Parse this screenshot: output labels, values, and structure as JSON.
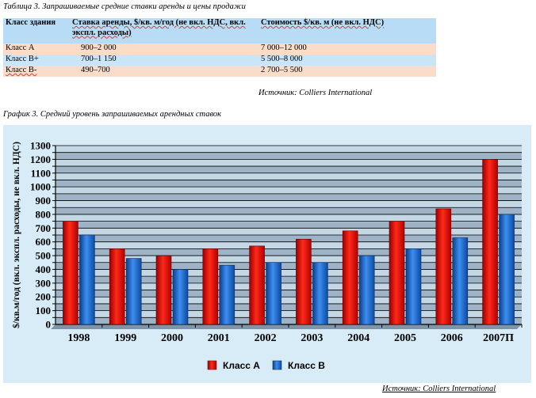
{
  "table": {
    "caption": "Таблица 3. Запрашиваемые средние ставки аренды и цены продажи",
    "headers": [
      "Класс здания",
      "Ставка аренды, $/кв. м/год (не вкл. НДС, вкл. экспл. расходы)",
      "Стоимость $/кв. м (не вкл. НДС)"
    ],
    "rows": [
      [
        "Класс А",
        "900–2 000",
        "7 000–12 000"
      ],
      [
        "Класс В+",
        "700–1 150",
        "5 500–8 000"
      ],
      [
        "Класс В-",
        "490–700",
        "2 700–5 500"
      ]
    ],
    "source": "Источник: Colliers International"
  },
  "chart_caption": "График 3. Средний уровень запрашиваемых арендных ставок",
  "chart_source": "Источник: Colliers International",
  "chart_data": {
    "type": "bar",
    "categories": [
      "1998",
      "1999",
      "2000",
      "2001",
      "2002",
      "2003",
      "2004",
      "2005",
      "2006",
      "2007П"
    ],
    "series": [
      {
        "name": "Класс А",
        "values": [
          750,
          550,
          500,
          550,
          570,
          620,
          680,
          750,
          840,
          1200
        ],
        "color": "#e01010"
      },
      {
        "name": "Класс В",
        "values": [
          650,
          480,
          400,
          430,
          450,
          450,
          500,
          550,
          630,
          800
        ],
        "color": "#1f6fd0"
      }
    ],
    "ylabel": "$/кв.м/год (вкл. экспл. расходы, не вкл. НДС)",
    "ylim": [
      0,
      1300
    ],
    "yticks": [
      0,
      50,
      100,
      150,
      200,
      250,
      300,
      350,
      400,
      450,
      500,
      550,
      600,
      650,
      700,
      750,
      800,
      850,
      900,
      950,
      1000,
      1050,
      1100,
      1150,
      1200,
      1250,
      1300
    ],
    "grid": true,
    "legend": "bottom-center",
    "colors": {
      "panel": "#d8ecf7",
      "plot_band_dark": "#9eb4c6",
      "plot_band_light": "#c4d7e5",
      "grid": "#000000"
    }
  }
}
